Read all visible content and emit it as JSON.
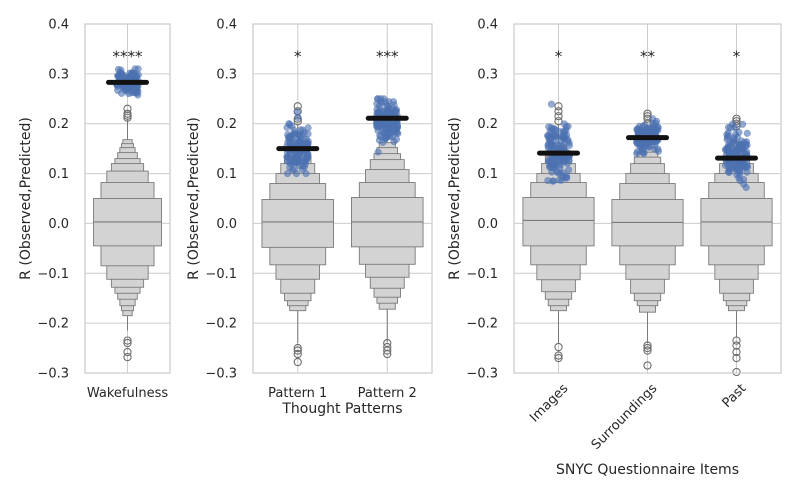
{
  "chart_data": [
    {
      "type": "boxen",
      "ylabel": "R (Observed,Predicted)",
      "xlabel": "",
      "ylim": [
        -0.3,
        0.4
      ],
      "yticks": [
        -0.3,
        -0.2,
        -0.1,
        0.0,
        0.1,
        0.2,
        0.3,
        0.4
      ],
      "ytick_labels": [
        "−0.3",
        "−0.2",
        "−0.1",
        "0.0",
        "0.1",
        "0.2",
        "0.3",
        "0.4"
      ],
      "grid": true,
      "categories": [
        "Wakefulness"
      ],
      "series": [
        {
          "category": "Wakefulness",
          "significance": "****",
          "observed_mean": 0.283,
          "observed_range": [
            0.24,
            0.31
          ],
          "null_median": 0.003,
          "null_boxes": [
            [
              -0.045,
              0.05
            ],
            [
              -0.085,
              0.082
            ],
            [
              -0.112,
              0.105
            ],
            [
              -0.128,
              0.12
            ],
            [
              -0.14,
              0.13
            ],
            [
              -0.152,
              0.142
            ],
            [
              -0.165,
              0.152
            ],
            [
              -0.175,
              0.16
            ],
            [
              -0.185,
              0.168
            ]
          ],
          "null_whisker": [
            -0.215,
            0.21
          ],
          "null_outliers": [
            -0.235,
            -0.24,
            -0.258,
            -0.268,
            0.212,
            0.216,
            0.22,
            0.23
          ]
        }
      ]
    },
    {
      "type": "boxen",
      "ylabel": "R (Observed,Predicted)",
      "xlabel": "Thought Patterns",
      "ylim": [
        -0.3,
        0.4
      ],
      "yticks": [
        -0.3,
        -0.2,
        -0.1,
        0.0,
        0.1,
        0.2,
        0.3,
        0.4
      ],
      "ytick_labels": [
        "−0.3",
        "−0.2",
        "−0.1",
        "0.0",
        "0.1",
        "0.2",
        "0.3",
        "0.4"
      ],
      "grid": true,
      "categories": [
        "Pattern 1",
        "Pattern 2"
      ],
      "series": [
        {
          "category": "Pattern 1",
          "significance": "*",
          "observed_mean": 0.15,
          "observed_range": [
            0.1,
            0.235
          ],
          "null_median": 0.003,
          "null_boxes": [
            [
              -0.048,
              0.048
            ],
            [
              -0.083,
              0.08
            ],
            [
              -0.112,
              0.1
            ],
            [
              -0.14,
              0.12
            ],
            [
              -0.155,
              0.135
            ],
            [
              -0.165,
              0.145
            ],
            [
              -0.175,
              0.155
            ]
          ],
          "null_whisker": [
            -0.24,
            0.2
          ],
          "null_outliers": [
            -0.25,
            -0.255,
            -0.262,
            -0.278,
            0.205,
            0.21,
            0.225,
            0.235
          ]
        },
        {
          "category": "Pattern 2",
          "significance": "***",
          "observed_mean": 0.211,
          "observed_range": [
            0.14,
            0.25
          ],
          "null_median": 0.003,
          "null_boxes": [
            [
              -0.047,
              0.052
            ],
            [
              -0.082,
              0.082
            ],
            [
              -0.108,
              0.108
            ],
            [
              -0.13,
              0.128
            ],
            [
              -0.148,
              0.14
            ],
            [
              -0.16,
              0.152
            ],
            [
              -0.172,
              0.162
            ]
          ],
          "null_whisker": [
            -0.238,
            0.185
          ],
          "null_outliers": [
            -0.24,
            -0.248,
            -0.255,
            -0.262,
            0.19,
            0.2,
            0.21
          ]
        }
      ]
    },
    {
      "type": "boxen",
      "ylabel": "R (Observed,Predicted)",
      "xlabel": "SNYC Questionnaire Items",
      "ylim": [
        -0.3,
        0.4
      ],
      "yticks": [
        -0.3,
        -0.2,
        -0.1,
        0.0,
        0.1,
        0.2,
        0.3,
        0.4
      ],
      "ytick_labels": [
        "−0.3",
        "−0.2",
        "−0.1",
        "0.0",
        "0.1",
        "0.2",
        "0.3",
        "0.4"
      ],
      "grid": true,
      "categories": [
        "Images",
        "Surroundings",
        "Past"
      ],
      "xtick_rotation": -45,
      "series": [
        {
          "category": "Images",
          "significance": "*",
          "observed_mean": 0.141,
          "observed_range": [
            0.085,
            0.25
          ],
          "null_median": 0.006,
          "null_boxes": [
            [
              -0.045,
              0.052
            ],
            [
              -0.083,
              0.082
            ],
            [
              -0.113,
              0.1
            ],
            [
              -0.137,
              0.12
            ],
            [
              -0.152,
              0.135
            ],
            [
              -0.165,
              0.145
            ],
            [
              -0.175,
              0.155
            ]
          ],
          "null_whisker": [
            -0.24,
            0.2
          ],
          "null_outliers": [
            -0.248,
            -0.265,
            -0.27,
            0.205,
            0.215,
            0.225,
            0.235
          ]
        },
        {
          "category": "Surroundings",
          "significance": "**",
          "observed_mean": 0.172,
          "observed_range": [
            0.14,
            0.225
          ],
          "null_median": 0.002,
          "null_boxes": [
            [
              -0.045,
              0.048
            ],
            [
              -0.083,
              0.08
            ],
            [
              -0.112,
              0.1
            ],
            [
              -0.14,
              0.12
            ],
            [
              -0.155,
              0.133
            ],
            [
              -0.165,
              0.143
            ],
            [
              -0.178,
              0.152
            ]
          ],
          "null_whisker": [
            -0.24,
            0.195
          ],
          "null_outliers": [
            -0.245,
            -0.25,
            -0.255,
            -0.285,
            0.2,
            0.21,
            0.215,
            0.22
          ]
        },
        {
          "category": "Past",
          "significance": "*",
          "observed_mean": 0.131,
          "observed_range": [
            0.07,
            0.21
          ],
          "null_median": 0.003,
          "null_boxes": [
            [
              -0.045,
              0.05
            ],
            [
              -0.083,
              0.082
            ],
            [
              -0.112,
              0.1
            ],
            [
              -0.14,
              0.12
            ],
            [
              -0.155,
              0.135
            ],
            [
              -0.165,
              0.145
            ],
            [
              -0.175,
              0.155
            ]
          ],
          "null_whisker": [
            -0.228,
            0.19
          ],
          "null_outliers": [
            -0.235,
            -0.245,
            -0.258,
            -0.27,
            -0.298,
            0.195,
            0.2,
            0.205,
            0.21
          ]
        }
      ]
    }
  ]
}
